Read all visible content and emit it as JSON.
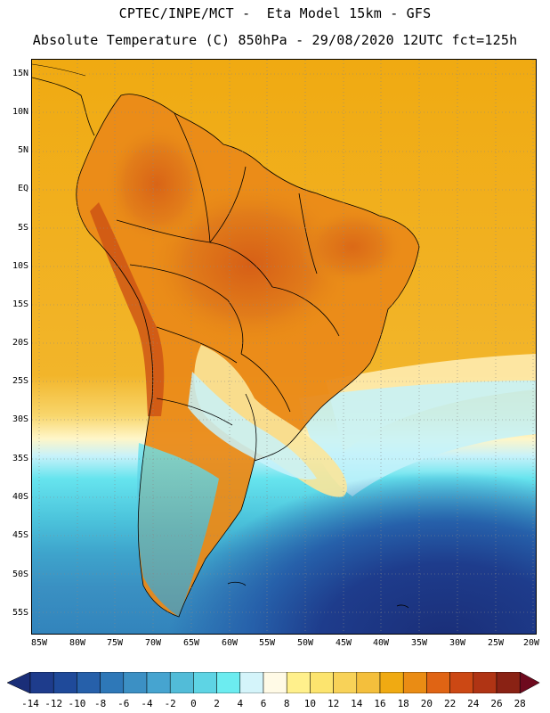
{
  "title_line1": "CPTEC/INPE/MCT -  Eta Model 15km - GFS",
  "title_line2": "Absolute Temperature (C) 850hPa - 29/08/2020 12UTC fct=125h",
  "lat_labels": [
    "15N",
    "10N",
    "5N",
    "EQ",
    "5S",
    "10S",
    "15S",
    "20S",
    "25S",
    "30S",
    "35S",
    "40S",
    "45S",
    "50S",
    "55S"
  ],
  "lon_labels": [
    "85W",
    "80W",
    "75W",
    "70W",
    "65W",
    "60W",
    "55W",
    "50W",
    "45W",
    "40W",
    "35W",
    "30W",
    "25W",
    "20W"
  ],
  "colorbar": {
    "labels": [
      "-14",
      "-12",
      "-10",
      "-8",
      "-6",
      "-4",
      "-2",
      "0",
      "2",
      "4",
      "6",
      "8",
      "10",
      "12",
      "14",
      "16",
      "18",
      "20",
      "22",
      "24",
      "26",
      "28"
    ],
    "colors": [
      "#1e3c8c",
      "#1f4a9a",
      "#2660aa",
      "#2e78b8",
      "#3c90c4",
      "#46a4d0",
      "#52bcd8",
      "#5ed4e4",
      "#6cecf0",
      "#d4f4fa",
      "#fffae6",
      "#fff08c",
      "#fce46e",
      "#f8d258",
      "#f4bf3c",
      "#f0aa12",
      "#ea8c14",
      "#e06414",
      "#cc4814",
      "#b03414",
      "#8a2214"
    ],
    "under_color": "#1a2e78",
    "over_color": "#6e0a1e"
  },
  "colors": {
    "ocean_warm": "#f0aa12",
    "land_hot": "#d8641a",
    "cold_deep": "#22368a"
  }
}
